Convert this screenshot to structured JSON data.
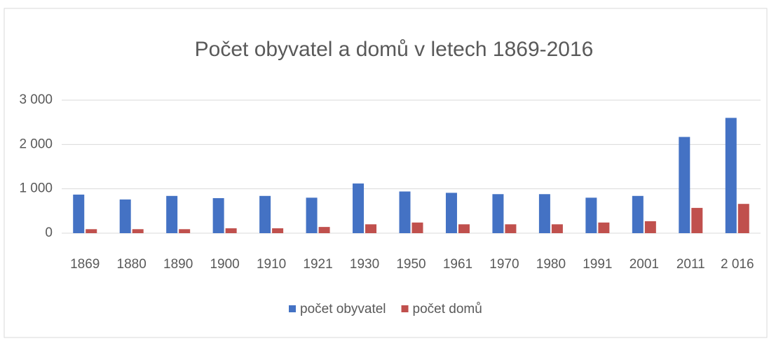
{
  "chart_data": {
    "type": "bar",
    "title": "Počet obyvatel a domů v letech 1869-2016",
    "categories": [
      "1869",
      "1880",
      "1890",
      "1900",
      "1910",
      "1921",
      "1930",
      "1950",
      "1961",
      "1970",
      "1980",
      "1991",
      "2001",
      "2011",
      "2 016"
    ],
    "series": [
      {
        "name": "počet obyvatel",
        "color": "#4472c4",
        "values": [
          870,
          760,
          840,
          790,
          840,
          800,
          1120,
          940,
          910,
          880,
          880,
          800,
          840,
          2170,
          2600
        ]
      },
      {
        "name": "počet domů",
        "color": "#c0504d",
        "values": [
          90,
          90,
          90,
          110,
          110,
          140,
          200,
          240,
          200,
          200,
          200,
          240,
          270,
          570,
          660
        ]
      }
    ],
    "ylim": [
      0,
      3000
    ],
    "yticks": [
      0,
      {
        "value": 1000,
        "label": "1 000"
      },
      {
        "value": 2000,
        "label": "2 000"
      },
      {
        "value": 3000,
        "label": "3 000"
      }
    ],
    "grid": true,
    "legend": "bottom"
  }
}
